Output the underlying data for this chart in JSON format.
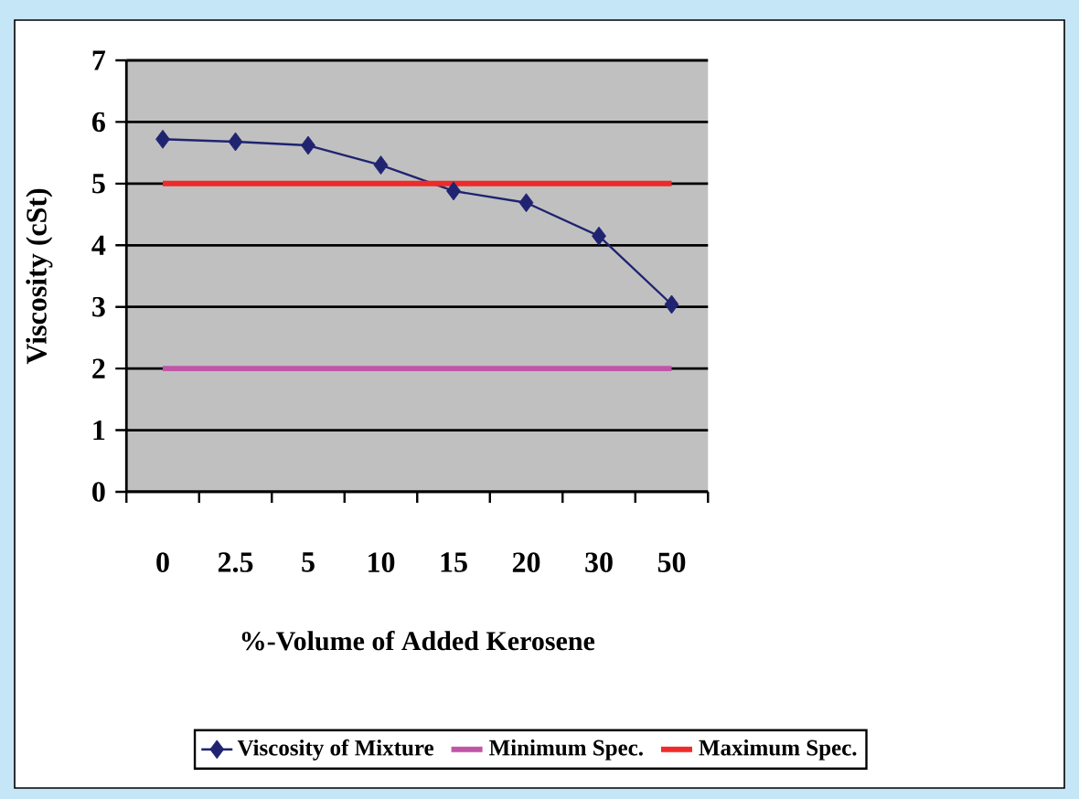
{
  "chart_data": {
    "type": "line",
    "xlabel": "%-Volume of Added Kerosene",
    "ylabel": "Viscosity (cSt)",
    "categories": [
      "0",
      "2.5",
      "5",
      "10",
      "15",
      "20",
      "30",
      "50"
    ],
    "series": [
      {
        "name": "Viscosity of Mixture",
        "color": "#1f2370",
        "values": [
          5.72,
          5.68,
          5.62,
          5.3,
          4.88,
          4.69,
          4.15,
          3.04
        ]
      },
      {
        "name": "Minimum Spec.",
        "color": "#c055a8",
        "marker": "none",
        "values": [
          2,
          2,
          2,
          2,
          2,
          2,
          2,
          2
        ]
      },
      {
        "name": "Maximum Spec.",
        "color": "#ee2a2a",
        "marker": "none",
        "values": [
          5,
          5,
          5,
          5,
          5,
          5,
          5,
          5
        ]
      }
    ],
    "ylim": [
      0,
      7
    ],
    "yticks": [
      0,
      1,
      2,
      3,
      4,
      5,
      6,
      7
    ],
    "grid": "y",
    "legend": "bottom",
    "marker": "diamond",
    "line_style": "solid"
  }
}
